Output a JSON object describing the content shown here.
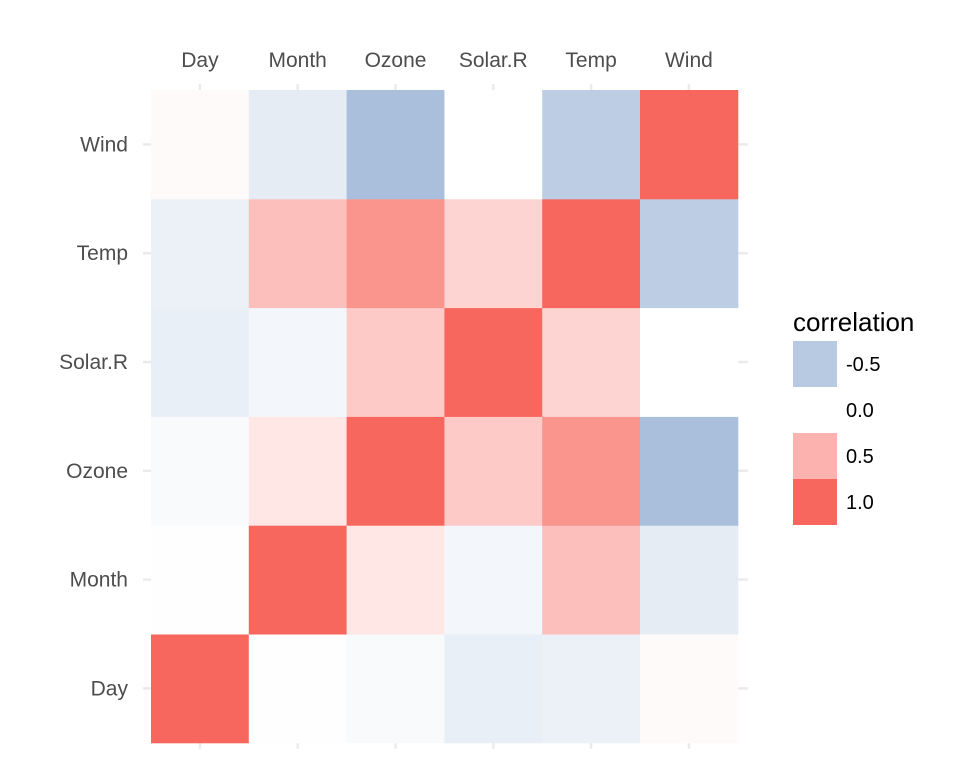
{
  "chart_data": {
    "type": "heatmap",
    "x_categories": [
      "Day",
      "Month",
      "Ozone",
      "Solar.R",
      "Temp",
      "Wind"
    ],
    "y_categories": [
      "Day",
      "Month",
      "Ozone",
      "Solar.R",
      "Temp",
      "Wind"
    ],
    "matrix": [
      [
        1.0,
        -0.01,
        -0.05,
        -0.15,
        -0.13,
        0.03
      ],
      [
        -0.01,
        1.0,
        0.16,
        -0.08,
        0.42,
        -0.18
      ],
      [
        -0.05,
        0.16,
        1.0,
        0.35,
        0.7,
        -0.6
      ],
      [
        -0.15,
        -0.08,
        0.35,
        1.0,
        0.28,
        0.0
      ],
      [
        -0.13,
        0.42,
        0.7,
        0.28,
        1.0,
        -0.46
      ],
      [
        0.03,
        -0.18,
        -0.6,
        0.0,
        -0.46,
        1.0
      ]
    ],
    "legend": {
      "title": "correlation",
      "position": "right",
      "entries": [
        {
          "label": "-0.5",
          "value": -0.5
        },
        {
          "label": "0.0",
          "value": 0.0
        },
        {
          "label": "0.5",
          "value": 0.5
        },
        {
          "label": "1.0",
          "value": 1.0
        }
      ]
    },
    "x_axis_position": "top",
    "colors": {
      "low": "#6f94c4",
      "mid": "#ffffff",
      "high": "#f8675e",
      "grid": "#ebebeb",
      "tick_label": "#4d4d4d"
    },
    "value_range": [
      -1,
      1
    ],
    "title": "",
    "xlabel": "",
    "ylabel": ""
  }
}
